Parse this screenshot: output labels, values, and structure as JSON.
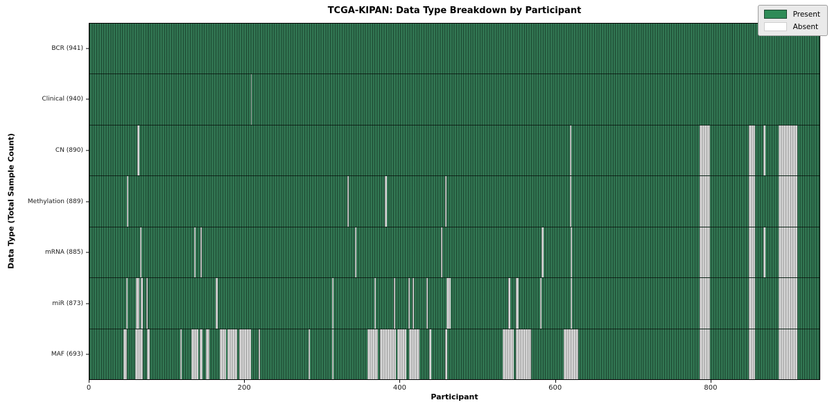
{
  "chart_data": {
    "type": "heatmap",
    "title": "TCGA-KIPAN: Data Type Breakdown by Participant",
    "xlabel": "Participant",
    "ylabel": "Data Type (Total Sample Count)",
    "x_ticks": [
      0,
      200,
      400,
      600,
      800
    ],
    "x_max": 941,
    "grid": false,
    "legend_position": "upper right",
    "legend": [
      {
        "label": "Present",
        "color": "#2e8b57"
      },
      {
        "label": "Absent",
        "color": "#ffffff"
      }
    ],
    "rows": [
      {
        "label": "BCR (941)",
        "name": "BCR",
        "count": 941,
        "absent_ranges": []
      },
      {
        "label": "Clinical (940)",
        "name": "Clinical",
        "count": 940,
        "absent_ranges": [
          [
            208,
            209
          ]
        ]
      },
      {
        "label": "CN (890)",
        "name": "CN",
        "count": 890,
        "absent_ranges": [
          [
            62,
            64
          ],
          [
            619,
            621
          ],
          [
            786,
            800
          ],
          [
            850,
            858
          ],
          [
            869,
            871
          ],
          [
            888,
            912
          ]
        ]
      },
      {
        "label": "Methylation (889)",
        "name": "Methylation",
        "count": 889,
        "absent_ranges": [
          [
            48,
            50
          ],
          [
            332,
            334
          ],
          [
            381,
            383
          ],
          [
            458,
            460
          ],
          [
            619,
            621
          ],
          [
            786,
            800
          ],
          [
            850,
            858
          ],
          [
            888,
            912
          ]
        ]
      },
      {
        "label": "mRNA (885)",
        "name": "mRNA",
        "count": 885,
        "absent_ranges": [
          [
            65,
            67
          ],
          [
            135,
            137
          ],
          [
            143,
            145
          ],
          [
            342,
            344
          ],
          [
            453,
            455
          ],
          [
            583,
            585
          ],
          [
            620,
            622
          ],
          [
            786,
            800
          ],
          [
            850,
            858
          ],
          [
            869,
            871
          ],
          [
            888,
            912
          ]
        ]
      },
      {
        "label": "miR (873)",
        "name": "miR",
        "count": 873,
        "absent_ranges": [
          [
            47,
            49
          ],
          [
            60,
            64
          ],
          [
            66,
            69
          ],
          [
            73,
            75
          ],
          [
            163,
            165
          ],
          [
            313,
            315
          ],
          [
            367,
            369
          ],
          [
            392,
            394
          ],
          [
            411,
            413
          ],
          [
            416,
            418
          ],
          [
            434,
            436
          ],
          [
            460,
            466
          ],
          [
            540,
            542
          ],
          [
            550,
            553
          ],
          [
            581,
            583
          ],
          [
            620,
            622
          ],
          [
            786,
            800
          ],
          [
            850,
            858
          ],
          [
            888,
            912
          ]
        ]
      },
      {
        "label": "MAF (693)",
        "name": "MAF",
        "count": 693,
        "absent_ranges": [
          [
            44,
            48
          ],
          [
            59,
            69
          ],
          [
            74,
            78
          ],
          [
            117,
            119
          ],
          [
            131,
            140
          ],
          [
            142,
            146
          ],
          [
            150,
            155
          ],
          [
            168,
            176
          ],
          [
            178,
            190
          ],
          [
            193,
            208
          ],
          [
            218,
            220
          ],
          [
            282,
            284
          ],
          [
            313,
            315
          ],
          [
            358,
            372
          ],
          [
            374,
            395
          ],
          [
            397,
            408
          ],
          [
            412,
            425
          ],
          [
            438,
            441
          ],
          [
            458,
            461
          ],
          [
            533,
            547
          ],
          [
            550,
            569
          ],
          [
            611,
            630
          ],
          [
            786,
            800
          ],
          [
            850,
            858
          ],
          [
            888,
            912
          ]
        ]
      }
    ],
    "colors": {
      "present": "#2e8b57",
      "present_edge": "#1d4831",
      "absent": "#ffffff",
      "absent_edge": "#9e9e9e",
      "plot_border": "#000000",
      "legend_bg": "#eaeaea"
    }
  }
}
